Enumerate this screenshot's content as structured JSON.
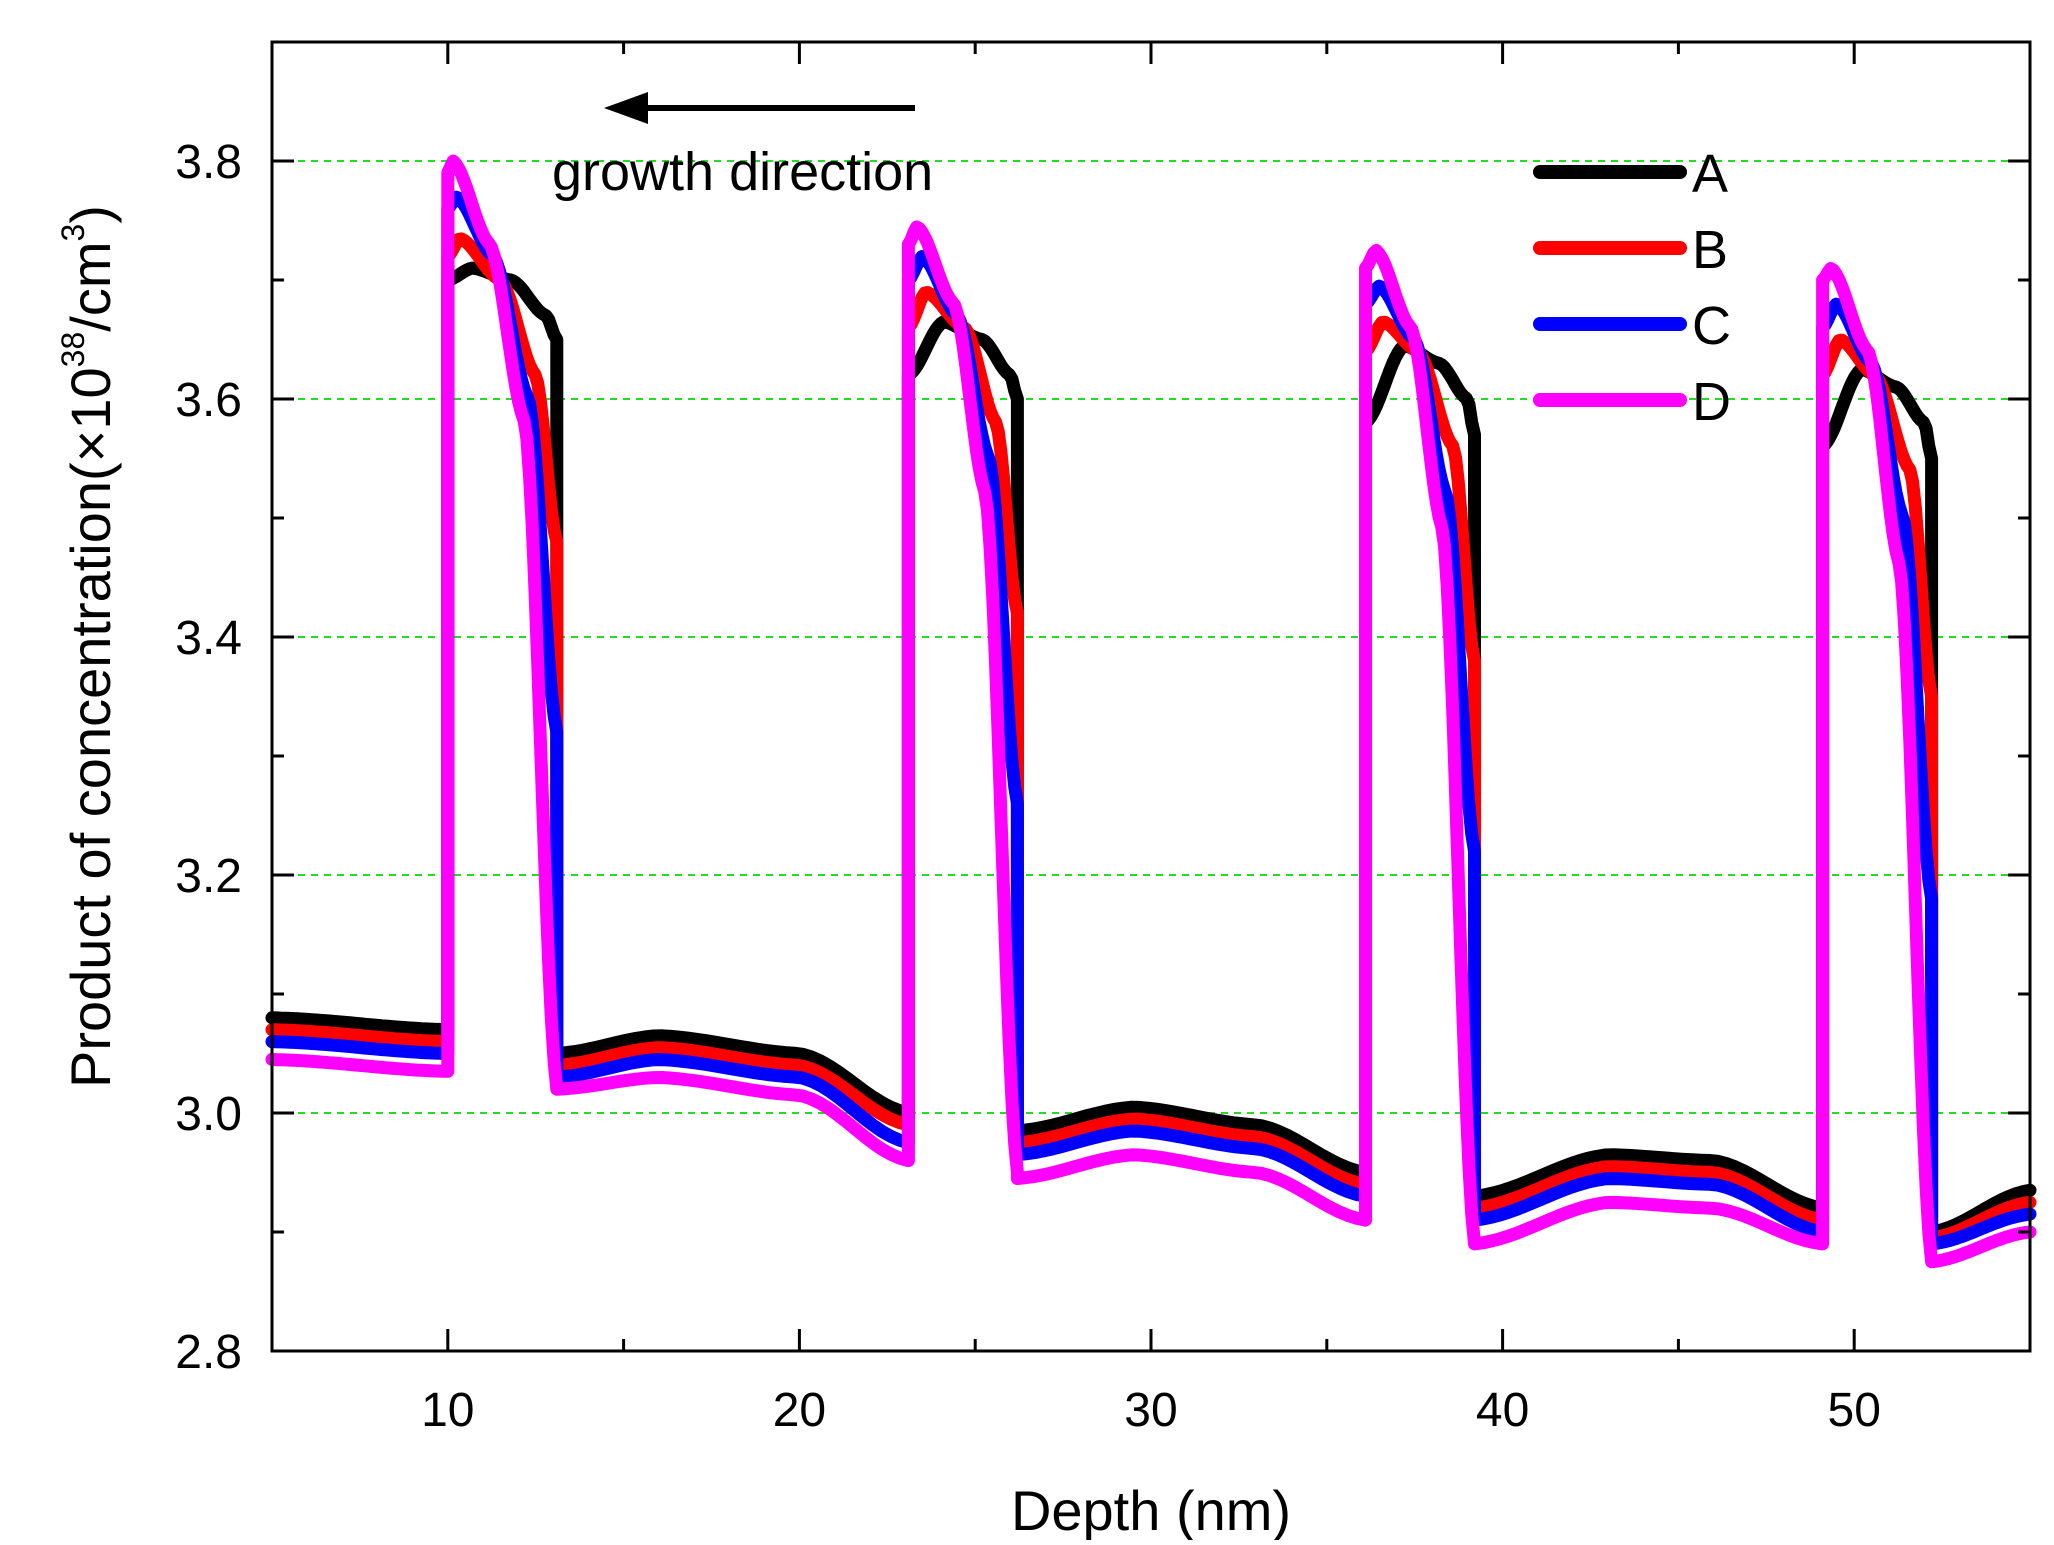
{
  "chart_data": {
    "type": "line",
    "xlabel": "Depth (nm)",
    "ylabel": {
      "prefix": "Product of concentration(",
      "times": "×",
      "base": "10",
      "exp1": "38",
      "unit": "/cm",
      "exp2": "3",
      "suffix": ")"
    },
    "xlim": [
      5,
      55
    ],
    "ylim": [
      2.8,
      3.9
    ],
    "x_ticks": [
      10,
      20,
      30,
      40,
      50
    ],
    "x_tick_labels": [
      "10",
      "20",
      "30",
      "40",
      "50"
    ],
    "y_ticks": [
      2.8,
      3.0,
      3.2,
      3.4,
      3.6,
      3.8
    ],
    "y_tick_labels": [
      "2.8",
      "3.0",
      "3.2",
      "3.4",
      "3.6",
      "3.8"
    ],
    "grid": {
      "horizontal_dashed_at": [
        3.0,
        3.2,
        3.4,
        3.6,
        3.8
      ],
      "color": "#22dd22"
    },
    "annotation": {
      "text": "growth direction",
      "arrow": "left"
    },
    "legend": {
      "placement": "top-right",
      "entries": [
        "A",
        "B",
        "C",
        "D"
      ]
    },
    "wells": [
      {
        "x_start": 10.0,
        "x_end": 13.1
      },
      {
        "x_start": 23.1,
        "x_end": 26.2
      },
      {
        "x_start": 36.1,
        "x_end": 39.2
      },
      {
        "x_start": 49.1,
        "x_end": 52.2
      }
    ],
    "series": [
      {
        "name": "A",
        "color": "#000000",
        "baseline": {
          "x": [
            5,
            10,
            13.1,
            16,
            20,
            23.1,
            26.2,
            29.5,
            33,
            36.1,
            39.2,
            43,
            46,
            49.1,
            52.2,
            55
          ],
          "y": [
            3.08,
            3.07,
            3.05,
            3.065,
            3.05,
            3.0,
            2.985,
            3.005,
            2.99,
            2.95,
            2.93,
            2.965,
            2.96,
            2.92,
            2.9,
            2.935
          ]
        },
        "wells": [
          {
            "x": [
              10.0,
              10.7,
              11.8,
              12.8,
              13.1
            ],
            "y": [
              3.7,
              3.71,
              3.7,
              3.67,
              3.65
            ]
          },
          {
            "x": [
              23.1,
              24.1,
              25.2,
              26.0,
              26.2
            ],
            "y": [
              3.62,
              3.665,
              3.65,
              3.62,
              3.6
            ]
          },
          {
            "x": [
              36.1,
              37.2,
              38.2,
              39.0,
              39.2
            ],
            "y": [
              3.58,
              3.645,
              3.63,
              3.6,
              3.57
            ]
          },
          {
            "x": [
              49.1,
              50.2,
              51.2,
              52.0,
              52.2
            ],
            "y": [
              3.56,
              3.625,
              3.61,
              3.58,
              3.55
            ]
          }
        ]
      },
      {
        "name": "B",
        "color": "#ff0000",
        "baseline": {
          "x": [
            5,
            10,
            13.1,
            16,
            20,
            23.1,
            26.2,
            29.5,
            33,
            36.1,
            39.2,
            43,
            46,
            49.1,
            52.2,
            55
          ],
          "y": [
            3.07,
            3.06,
            3.04,
            3.055,
            3.04,
            2.99,
            2.975,
            2.995,
            2.98,
            2.94,
            2.92,
            2.955,
            2.95,
            2.91,
            2.895,
            2.925
          ]
        },
        "wells": [
          {
            "x": [
              10.0,
              10.35,
              11.5,
              12.5,
              13.1
            ],
            "y": [
              3.72,
              3.735,
              3.7,
              3.62,
              3.48
            ]
          },
          {
            "x": [
              23.1,
              23.6,
              24.7,
              25.6,
              26.2
            ],
            "y": [
              3.66,
              3.69,
              3.66,
              3.58,
              3.42
            ]
          },
          {
            "x": [
              36.1,
              36.6,
              37.6,
              38.6,
              39.2
            ],
            "y": [
              3.64,
              3.665,
              3.64,
              3.56,
              3.38
            ]
          },
          {
            "x": [
              49.1,
              49.6,
              50.6,
              51.6,
              52.2
            ],
            "y": [
              3.62,
              3.65,
              3.62,
              3.54,
              3.35
            ]
          }
        ]
      },
      {
        "name": "C",
        "color": "#0000ff",
        "baseline": {
          "x": [
            5,
            10,
            13.1,
            16,
            20,
            23.1,
            26.2,
            29.5,
            33,
            36.1,
            39.2,
            43,
            46,
            49.1,
            52.2,
            55
          ],
          "y": [
            3.06,
            3.05,
            3.03,
            3.045,
            3.03,
            2.975,
            2.965,
            2.985,
            2.97,
            2.93,
            2.91,
            2.945,
            2.94,
            2.9,
            2.89,
            2.915
          ]
        },
        "wells": [
          {
            "x": [
              10.0,
              10.25,
              11.3,
              12.3,
              13.1
            ],
            "y": [
              3.76,
              3.77,
              3.72,
              3.6,
              3.32
            ]
          },
          {
            "x": [
              23.1,
              23.5,
              24.5,
              25.4,
              26.2
            ],
            "y": [
              3.7,
              3.72,
              3.67,
              3.55,
              3.26
            ]
          },
          {
            "x": [
              36.1,
              36.5,
              37.5,
              38.4,
              39.2
            ],
            "y": [
              3.68,
              3.695,
              3.65,
              3.52,
              3.22
            ]
          },
          {
            "x": [
              49.1,
              49.5,
              50.5,
              51.4,
              52.2
            ],
            "y": [
              3.66,
              3.68,
              3.63,
              3.5,
              3.18
            ]
          }
        ]
      },
      {
        "name": "D",
        "color": "#ff00ff",
        "baseline": {
          "x": [
            5,
            10,
            13.1,
            16,
            20,
            23.1,
            26.2,
            29.5,
            33,
            36.1,
            39.2,
            43,
            46,
            49.1,
            52.2,
            55
          ],
          "y": [
            3.045,
            3.035,
            3.02,
            3.03,
            3.015,
            2.96,
            2.945,
            2.965,
            2.95,
            2.91,
            2.89,
            2.925,
            2.92,
            2.89,
            2.875,
            2.9
          ]
        },
        "wells": [
          {
            "x": [
              10.0,
              10.15,
              11.2,
              12.2,
              13.1
            ],
            "y": [
              3.79,
              3.8,
              3.73,
              3.58,
              3.02
            ]
          },
          {
            "x": [
              23.1,
              23.35,
              24.4,
              25.3,
              26.2
            ],
            "y": [
              3.73,
              3.745,
              3.68,
              3.52,
              2.95
            ]
          },
          {
            "x": [
              36.1,
              36.4,
              37.4,
              38.3,
              39.2
            ],
            "y": [
              3.71,
              3.725,
              3.66,
              3.49,
              2.89
            ]
          },
          {
            "x": [
              49.1,
              49.35,
              50.4,
              51.3,
              52.2
            ],
            "y": [
              3.7,
              3.71,
              3.64,
              3.46,
              2.875
            ]
          }
        ]
      }
    ]
  }
}
